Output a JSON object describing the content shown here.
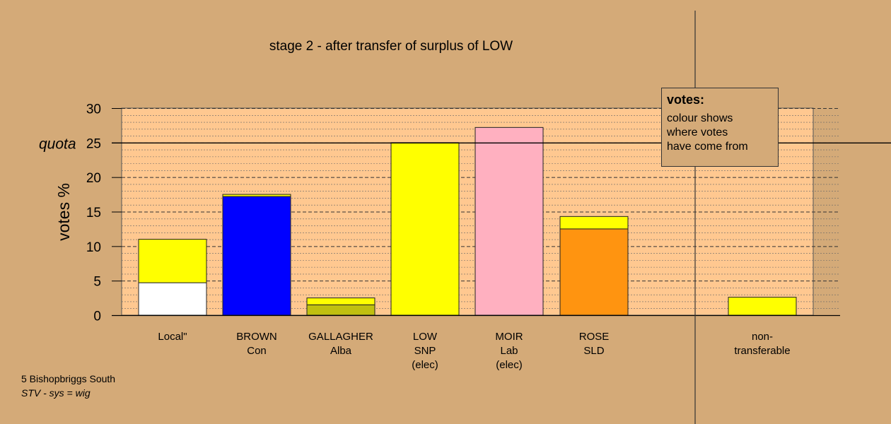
{
  "chart_data": {
    "type": "bar",
    "stacked": true,
    "title": "stage 2 - after transfer of surplus of LOW",
    "ylabel": "votes %",
    "ylim": [
      0,
      30
    ],
    "yticks": [
      0,
      5,
      10,
      15,
      20,
      25,
      30
    ],
    "quota": {
      "label": "quota",
      "value": 25
    },
    "grid": "dashed",
    "categories": [
      {
        "lines": [
          "Local\""
        ],
        "segments": [
          {
            "value": 4.7,
            "color": "#ffffff"
          },
          {
            "value": 6.3,
            "color": "#ffff00"
          }
        ]
      },
      {
        "lines": [
          "BROWN",
          "Con"
        ],
        "segments": [
          {
            "value": 17.2,
            "color": "#0000ff"
          },
          {
            "value": 0.3,
            "color": "#ffff00"
          }
        ]
      },
      {
        "lines": [
          "GALLAGHER",
          "Alba"
        ],
        "segments": [
          {
            "value": 1.5,
            "color": "#c0c010"
          },
          {
            "value": 1.0,
            "color": "#ffff00"
          }
        ]
      },
      {
        "lines": [
          "LOW",
          "SNP",
          "(elec)"
        ],
        "segments": [
          {
            "value": 25.0,
            "color": "#ffff00"
          }
        ]
      },
      {
        "lines": [
          "MOIR",
          "Lab",
          "(elec)"
        ],
        "segments": [
          {
            "value": 27.2,
            "color": "#ffb0c0"
          }
        ]
      },
      {
        "lines": [
          "ROSE",
          "SLD"
        ],
        "segments": [
          {
            "value": 12.5,
            "color": "#ff9410"
          },
          {
            "value": 1.8,
            "color": "#ffff00"
          }
        ]
      },
      {
        "lines": [
          "non-",
          "transferable"
        ],
        "segments": [
          {
            "value": 2.6,
            "color": "#ffff00"
          }
        ]
      }
    ]
  },
  "legend": {
    "title": "votes:",
    "lines": [
      "colour shows",
      "where votes",
      "have come from"
    ]
  },
  "footer": {
    "ward": "5 Bishopbriggs South",
    "system": "STV - sys = wig"
  },
  "colors": {
    "background": "#d4aa78",
    "plot_area": "#ffc890"
  }
}
